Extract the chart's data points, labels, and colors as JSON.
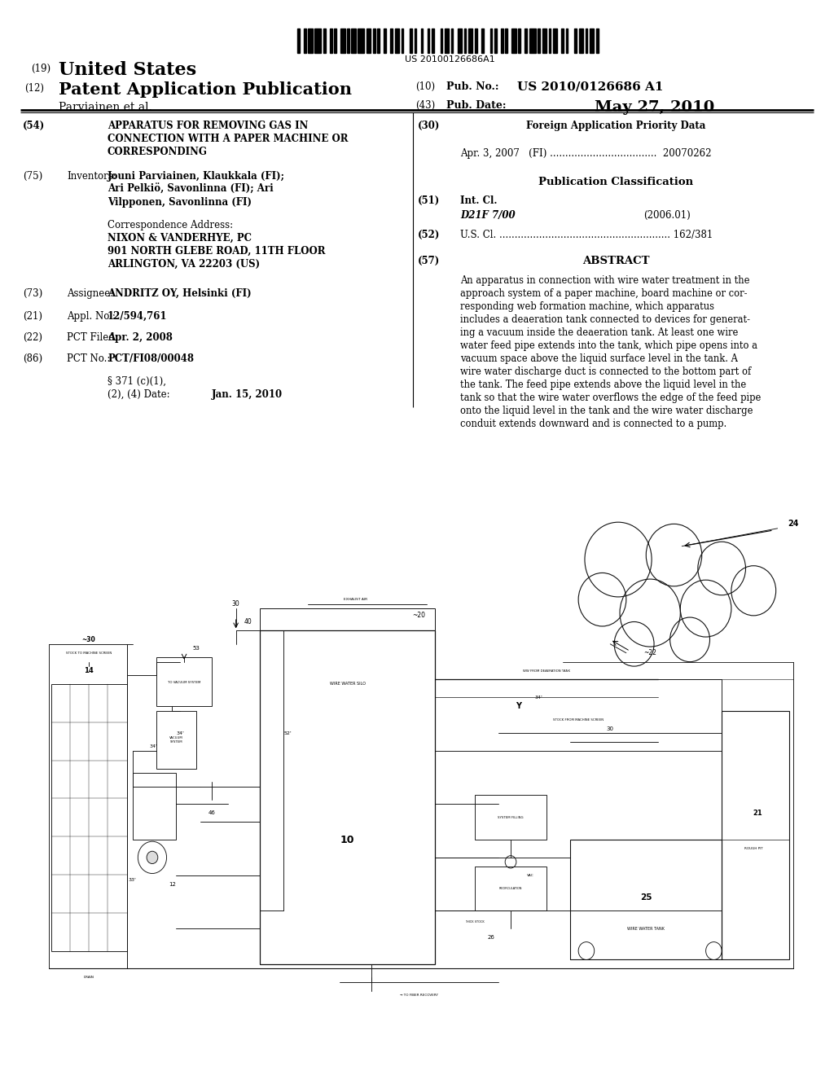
{
  "background_color": "#ffffff",
  "barcode_text": "US 20100126686A1",
  "header_line1_num": "(19)",
  "header_line1_text": "United States",
  "header_line2_num": "(12)",
  "header_line2_text": "Patent Application Publication",
  "header_line3_text": "Parviainen et al.",
  "header_right_num10": "(10)",
  "header_right_pubno_label": "Pub. No.:",
  "header_right_pubno_val": "US 2010/0126686 A1",
  "header_right_num43": "(43)",
  "header_right_date_label": "Pub. Date:",
  "header_right_date_val": "May 27, 2010",
  "left_items": [
    {
      "num": "(54)",
      "label": "",
      "lines": [
        {
          "text": "APPARATUS FOR REMOVING GAS IN",
          "bold": true
        },
        {
          "text": "CONNECTION WITH A PAPER MACHINE OR",
          "bold": true
        },
        {
          "text": "CORRESPONDING",
          "bold": true
        }
      ]
    },
    {
      "num": "(75)",
      "label": "Inventors:",
      "lines": [
        {
          "text": "Jouni Parviainen, Klaukkala (FI);",
          "bold": true
        },
        {
          "text": "Ari Pelkiö, Savonlinna (FI); Ari",
          "bold": true
        },
        {
          "text": "Vilpponen, Savonlinna (FI)",
          "bold": true
        }
      ]
    },
    {
      "num": "",
      "label": "Correspondence Address:",
      "lines": [
        {
          "text": "NIXON & VANDERHYE, PC",
          "bold": true
        },
        {
          "text": "901 NORTH GLEBE ROAD, 11TH FLOOR",
          "bold": true
        },
        {
          "text": "ARLINGTON, VA 22203 (US)",
          "bold": true
        }
      ]
    },
    {
      "num": "(73)",
      "label": "Assignee:",
      "lines": [
        {
          "text": "ANDRITZ OY, Helsinki (FI)",
          "bold": true
        }
      ]
    },
    {
      "num": "(21)",
      "label": "Appl. No.:",
      "lines": [
        {
          "text": "12/594,761",
          "bold": true
        }
      ]
    },
    {
      "num": "(22)",
      "label": "PCT Filed:",
      "lines": [
        {
          "text": "Apr. 2, 2008",
          "bold": true
        }
      ]
    },
    {
      "num": "(86)",
      "label": "PCT No.:",
      "lines": [
        {
          "text": "PCT/FI08/00048",
          "bold": true
        }
      ]
    },
    {
      "num": "",
      "label": "§ 371 (c)(1),",
      "lines": [
        {
          "text": "",
          "bold": false
        }
      ]
    },
    {
      "num": "",
      "label": "(2), (4) Date:",
      "lines": [
        {
          "text": "Jan. 15, 2010",
          "bold": true
        }
      ]
    }
  ],
  "right_num30": "(30)",
  "right_foreign_title": "Foreign Application Priority Data",
  "right_foreign_entry": "Apr. 3, 2007   (FI) ....................................  20070262",
  "right_pub_class_title": "Publication Classification",
  "right_num51": "(51)",
  "right_intcl_label": "Int. Cl.",
  "right_intcl_val": "D21F 7/00",
  "right_intcl_year": "(2006.01)",
  "right_num52": "(52)",
  "right_uscl": "U.S. Cl. ........................................................ 162/381",
  "right_num57": "(57)",
  "right_abstract_title": "ABSTRACT",
  "right_abstract": "An apparatus in connection with wire water treatment in the\napproach system of a paper machine, board machine or cor-\nresponding web formation machine, which apparatus\nincludes a deaeration tank connected to devices for generat-\ning a vacuum inside the deaeration tank. At least one wire\nwater feed pipe extends into the tank, which pipe opens into a\nvacuum space above the liquid surface level in the tank. A\nwire water discharge duct is connected to the bottom part of\nthe tank. The feed pipe extends above the liquid level in the\ntank so that the wire water overflows the edge of the feed pipe\nonto the liquid level in the tank and the wire water discharge\nconduit extends downward and is connected to a pump."
}
